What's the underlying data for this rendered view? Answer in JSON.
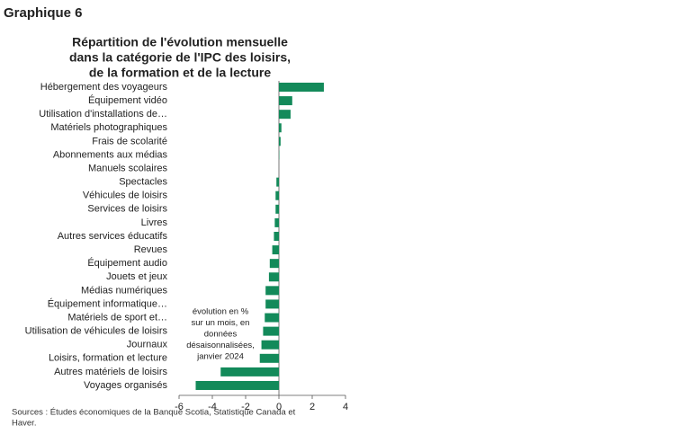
{
  "header": "Graphique 6",
  "chart_data": {
    "type": "hbar",
    "title": [
      "Répartition de l'évolution mensuelle",
      "dans la catégorie de l'IPC des loisirs,",
      "de la formation et de la lecture"
    ],
    "categories": [
      "Hébergement des voyageurs",
      "Équipement vidéo",
      "Utilisation d'installations de…",
      "Matériels photographiques",
      "Frais de scolarité",
      "Abonnements aux médias",
      "Manuels scolaires",
      "Spectacles",
      "Véhicules de loisirs",
      "Services de loisirs",
      "Livres",
      "Autres services éducatifs",
      "Revues",
      "Équipement audio",
      "Jouets et jeux",
      "Médias numériques",
      "Équipement informatique…",
      "Matériels de sport et…",
      "Utilisation de véhicules de loisirs",
      "Journaux",
      "Loisirs, formation et lecture",
      "Autres matériels de loisirs",
      "Voyages organisés"
    ],
    "values": [
      2.7,
      0.8,
      0.7,
      0.15,
      0.1,
      0.02,
      0,
      -0.15,
      -0.2,
      -0.2,
      -0.25,
      -0.3,
      -0.4,
      -0.55,
      -0.6,
      -0.8,
      -0.8,
      -0.85,
      -0.95,
      -1.05,
      -1.15,
      -3.5,
      -5.0
    ],
    "color": "#138a5a",
    "xlim": [
      -6,
      4
    ],
    "xticks": [
      -6,
      -4,
      -2,
      0,
      2,
      4
    ],
    "annotation": [
      "évolution en %",
      "sur un mois, en",
      "données",
      "désaisonnalisées,",
      "janvier 2024"
    ],
    "source": [
      "Sources : Études économiques de la Banque Scotia, Statistique Canada et",
      "Haver."
    ]
  }
}
